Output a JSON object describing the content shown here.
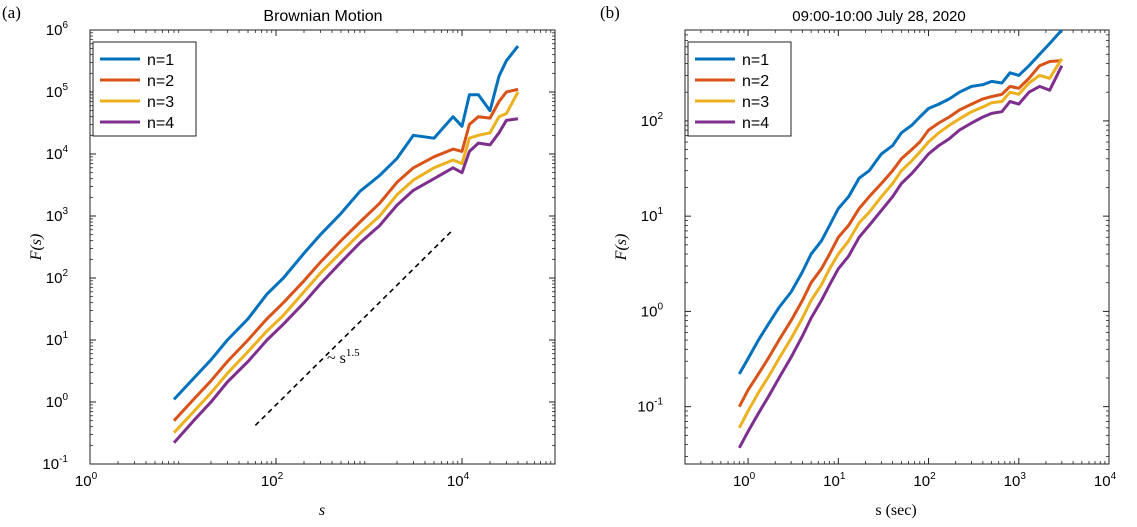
{
  "chart_data": [
    {
      "type": "line",
      "panel_label": "(a)",
      "title": "Brownian Motion",
      "xlabel": "s",
      "ylabel": "F(s)",
      "xscale": "log",
      "yscale": "log",
      "xlim": [
        1,
        100000
      ],
      "ylim": [
        0.1,
        1000000
      ],
      "xticks": [
        1,
        100,
        10000
      ],
      "xtick_labels": [
        "10",
        "10",
        "10"
      ],
      "xtick_exponents": [
        "0",
        "2",
        "4"
      ],
      "yticks": [
        0.1,
        1,
        10,
        100,
        1000,
        10000,
        100000,
        1000000
      ],
      "ytick_labels": [
        "10",
        "10",
        "10",
        "10",
        "10",
        "10",
        "10",
        "10"
      ],
      "ytick_exponents": [
        "-1",
        "0",
        "1",
        "2",
        "3",
        "4",
        "5",
        "6"
      ],
      "legend_position": "top-left",
      "grid": false,
      "annotation": {
        "text": "~ s",
        "superscript": "1.5"
      },
      "reference_line": {
        "x": [
          60,
          8000
        ],
        "y": [
          0.42,
          600
        ],
        "style": "dashed",
        "color": "#000000"
      },
      "series": [
        {
          "name": "n=1",
          "color": "#0072BD",
          "x": [
            8,
            13,
            20,
            30,
            50,
            80,
            120,
            200,
            300,
            500,
            800,
            1300,
            2000,
            3000,
            5000,
            8000,
            10000,
            12000,
            15000,
            20000,
            25000,
            30000,
            40000
          ],
          "y": [
            1.1,
            2.4,
            4.8,
            10,
            22,
            55,
            100,
            250,
            500,
            1100,
            2500,
            4500,
            8500,
            20000,
            18000,
            40000,
            28000,
            90000,
            90000,
            50000,
            180000,
            320000,
            550000
          ]
        },
        {
          "name": "n=2",
          "color": "#D95319",
          "x": [
            8,
            13,
            20,
            30,
            50,
            80,
            120,
            200,
            300,
            500,
            800,
            1300,
            2000,
            3000,
            5000,
            8000,
            10000,
            12000,
            15000,
            20000,
            25000,
            30000,
            40000
          ],
          "y": [
            0.5,
            1.1,
            2.2,
            4.5,
            10,
            22,
            40,
            90,
            180,
            400,
            800,
            1600,
            3500,
            6000,
            9000,
            12000,
            11000,
            30000,
            40000,
            38000,
            70000,
            100000,
            110000
          ]
        },
        {
          "name": "n=3",
          "color": "#EDB120",
          "x": [
            8,
            13,
            20,
            30,
            50,
            80,
            120,
            200,
            300,
            500,
            800,
            1300,
            2000,
            3000,
            5000,
            8000,
            10000,
            12000,
            15000,
            20000,
            25000,
            30000,
            40000
          ],
          "y": [
            0.32,
            0.7,
            1.4,
            2.9,
            6.5,
            14,
            25,
            60,
            120,
            260,
            520,
            1000,
            2200,
            3800,
            6000,
            8000,
            7000,
            18000,
            20000,
            22000,
            40000,
            45000,
            100000
          ]
        },
        {
          "name": "n=4",
          "color": "#7E2F8E",
          "x": [
            8,
            13,
            20,
            30,
            50,
            80,
            120,
            200,
            300,
            500,
            800,
            1300,
            2000,
            3000,
            5000,
            8000,
            10000,
            12000,
            15000,
            20000,
            25000,
            30000,
            40000
          ],
          "y": [
            0.22,
            0.5,
            1,
            2.1,
            4.5,
            10,
            18,
            40,
            80,
            180,
            370,
            700,
            1500,
            2600,
            4000,
            6000,
            5000,
            11000,
            15000,
            14000,
            22000,
            35000,
            37000
          ]
        }
      ]
    },
    {
      "type": "line",
      "panel_label": "(b)",
      "title": "09:00-10:00 July 28, 2020",
      "xlabel": "s (sec)",
      "ylabel": "F(s)",
      "xscale": "log",
      "yscale": "log",
      "xlim": [
        0.2,
        10000
      ],
      "ylim": [
        0.025,
        900
      ],
      "xticks": [
        1,
        10,
        100,
        1000,
        10000
      ],
      "xtick_labels": [
        "10",
        "10",
        "10",
        "10",
        "10"
      ],
      "xtick_exponents": [
        "0",
        "1",
        "2",
        "3",
        "4"
      ],
      "yticks": [
        0.1,
        1,
        10,
        100
      ],
      "ytick_labels": [
        "10",
        "10",
        "10",
        "10"
      ],
      "ytick_exponents": [
        "-1",
        "0",
        "1",
        "2"
      ],
      "legend_position": "top-left",
      "grid": false,
      "series": [
        {
          "name": "n=1",
          "color": "#0072BD",
          "x": [
            0.8,
            1,
            1.3,
            1.7,
            2.2,
            3,
            4,
            5,
            6.5,
            8,
            10,
            13,
            17,
            22,
            30,
            40,
            50,
            65,
            80,
            100,
            130,
            170,
            220,
            300,
            400,
            500,
            650,
            800,
            1000,
            1300,
            1700,
            2200,
            3000
          ],
          "y": [
            0.22,
            0.32,
            0.5,
            0.75,
            1.1,
            1.6,
            2.6,
            4,
            5.5,
            8,
            12,
            16,
            25,
            30,
            45,
            55,
            75,
            90,
            110,
            135,
            150,
            170,
            200,
            230,
            240,
            260,
            250,
            320,
            300,
            380,
            500,
            650,
            900
          ]
        },
        {
          "name": "n=2",
          "color": "#D95319",
          "x": [
            0.8,
            1,
            1.3,
            1.7,
            2.2,
            3,
            4,
            5,
            6.5,
            8,
            10,
            13,
            17,
            22,
            30,
            40,
            50,
            65,
            80,
            100,
            130,
            170,
            220,
            300,
            400,
            500,
            650,
            800,
            1000,
            1300,
            1700,
            2200,
            3000
          ],
          "y": [
            0.1,
            0.15,
            0.22,
            0.33,
            0.5,
            0.8,
            1.3,
            2,
            2.8,
            4,
            6,
            8,
            12,
            16,
            22,
            30,
            40,
            50,
            60,
            80,
            95,
            110,
            130,
            150,
            170,
            180,
            190,
            230,
            220,
            280,
            380,
            420,
            430
          ]
        },
        {
          "name": "n=3",
          "color": "#EDB120",
          "x": [
            0.8,
            1,
            1.3,
            1.7,
            2.2,
            3,
            4,
            5,
            6.5,
            8,
            10,
            13,
            17,
            22,
            30,
            40,
            50,
            65,
            80,
            100,
            130,
            170,
            220,
            300,
            400,
            500,
            650,
            800,
            1000,
            1300,
            1700,
            2200,
            3000
          ],
          "y": [
            0.06,
            0.09,
            0.14,
            0.21,
            0.32,
            0.52,
            0.85,
            1.3,
            1.9,
            2.8,
            4,
            5.5,
            8.5,
            11,
            16,
            22,
            30,
            38,
            47,
            60,
            75,
            90,
            105,
            125,
            140,
            155,
            160,
            200,
            190,
            250,
            300,
            280,
            450
          ]
        },
        {
          "name": "n=4",
          "color": "#7E2F8E",
          "x": [
            0.8,
            1,
            1.3,
            1.7,
            2.2,
            3,
            4,
            5,
            6.5,
            8,
            10,
            13,
            17,
            22,
            30,
            40,
            50,
            65,
            80,
            100,
            130,
            170,
            220,
            300,
            400,
            500,
            650,
            800,
            1000,
            1300,
            1700,
            2200,
            3000
          ],
          "y": [
            0.037,
            0.055,
            0.085,
            0.13,
            0.2,
            0.33,
            0.55,
            0.85,
            1.3,
            1.9,
            2.8,
            3.8,
            6,
            8,
            11.5,
            16,
            22,
            28,
            35,
            45,
            55,
            65,
            80,
            95,
            110,
            120,
            125,
            160,
            150,
            200,
            230,
            210,
            380
          ]
        }
      ]
    }
  ]
}
